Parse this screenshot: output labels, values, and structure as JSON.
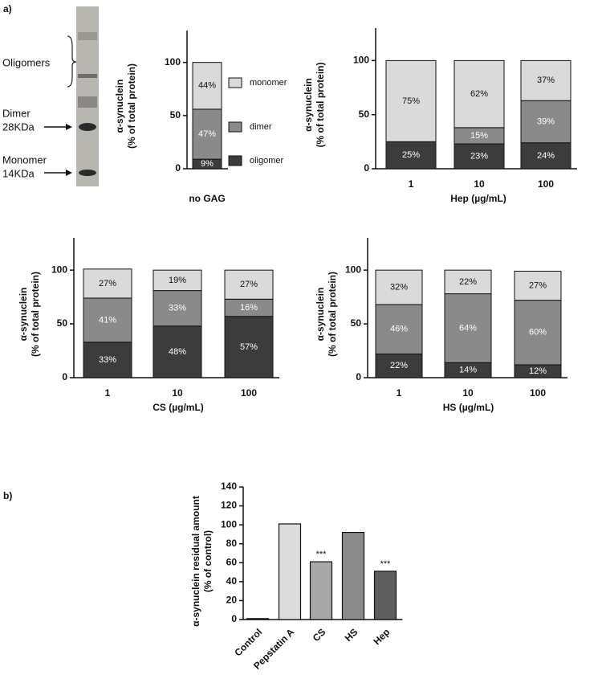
{
  "panel_labels": [
    "a)",
    "b)"
  ],
  "blot": {
    "labels": [
      "Oligomers",
      "Dimer",
      "28KDa",
      "Monomer",
      "14KDa"
    ]
  },
  "chart_data": [
    {
      "type": "stacked_bar",
      "categories": [
        null
      ],
      "xlabel": "no GAG",
      "ylabel": [
        "α-synuclein",
        "(% of total protein)"
      ],
      "ylim": [
        0,
        130
      ],
      "yticks": [
        0,
        50,
        100
      ],
      "legend": "right",
      "series": [
        {
          "name": "oligomer",
          "color": "#3c3c3c",
          "values": [
            9
          ],
          "value_labels": [
            "9%"
          ]
        },
        {
          "name": "dimer",
          "color": "#8a8a8a",
          "values": [
            47
          ],
          "value_labels": [
            "47%"
          ]
        },
        {
          "name": "monomer",
          "color": "#dadada",
          "values": [
            44
          ],
          "value_labels": [
            "44%"
          ]
        }
      ]
    },
    {
      "type": "stacked_bar",
      "categories": [
        "1",
        "10",
        "100"
      ],
      "xlabel": "Hep (µg/mL)",
      "ylabel": [
        "α-synuclein",
        "(% of total protein)"
      ],
      "ylim": [
        0,
        130
      ],
      "yticks": [
        0,
        50,
        100
      ],
      "series": [
        {
          "name": "oligomer",
          "color": "#3c3c3c",
          "values": [
            25,
            23,
            24
          ],
          "value_labels": [
            "25%",
            "23%",
            "24%"
          ]
        },
        {
          "name": "dimer",
          "color": "#8a8a8a",
          "values": [
            null,
            15,
            39
          ],
          "value_labels": [
            null,
            "15%",
            "39%"
          ]
        },
        {
          "name": "monomer",
          "color": "#dadada",
          "values": [
            75,
            62,
            37
          ],
          "value_labels": [
            "75%",
            "62%",
            "37%"
          ]
        }
      ]
    },
    {
      "type": "stacked_bar",
      "categories": [
        "1",
        "10",
        "100"
      ],
      "xlabel": "CS (µg/mL)",
      "ylabel": [
        "α-synuclein",
        "(% of total protein)"
      ],
      "ylim": [
        0,
        130
      ],
      "yticks": [
        0,
        50,
        100
      ],
      "series": [
        {
          "name": "oligomer",
          "color": "#3c3c3c",
          "values": [
            33,
            48,
            57
          ],
          "value_labels": [
            "33%",
            "48%",
            "57%"
          ]
        },
        {
          "name": "dimer",
          "color": "#8a8a8a",
          "values": [
            41,
            33,
            16
          ],
          "value_labels": [
            "41%",
            "33%",
            "16%"
          ]
        },
        {
          "name": "monomer",
          "color": "#dadada",
          "values": [
            27,
            19,
            27
          ],
          "value_labels": [
            "27%",
            "19%",
            "27%"
          ]
        }
      ]
    },
    {
      "type": "stacked_bar",
      "categories": [
        "1",
        "10",
        "100"
      ],
      "xlabel": "HS (µg/mL)",
      "ylabel": [
        "α-synuclein",
        "(% of total protein)"
      ],
      "ylim": [
        0,
        130
      ],
      "yticks": [
        0,
        50,
        100
      ],
      "series": [
        {
          "name": "oligomer",
          "color": "#3c3c3c",
          "values": [
            22,
            14,
            12
          ],
          "value_labels": [
            "22%",
            "14%",
            "12%"
          ]
        },
        {
          "name": "dimer",
          "color": "#8a8a8a",
          "values": [
            46,
            64,
            60
          ],
          "value_labels": [
            "46%",
            "64%",
            "60%"
          ]
        },
        {
          "name": "monomer",
          "color": "#dadada",
          "values": [
            32,
            22,
            27
          ],
          "value_labels": [
            "32%",
            "22%",
            "27%"
          ]
        }
      ]
    },
    {
      "type": "bar",
      "categories": [
        "Control",
        "Pepstatin A",
        "CS",
        "HS",
        "Hep"
      ],
      "ylabel": [
        "α-synuclein residual amount",
        "(% of control)"
      ],
      "values": [
        1,
        101,
        61,
        92,
        51
      ],
      "colors": [
        "#ffffff",
        "#dcdcdc",
        "#a8a8a8",
        "#8c8c8c",
        "#5e5e5e"
      ],
      "significance": [
        null,
        null,
        "***",
        null,
        "***"
      ],
      "ylim": [
        0,
        140
      ],
      "yticks": [
        0,
        20,
        40,
        60,
        80,
        100,
        120,
        140
      ]
    }
  ]
}
